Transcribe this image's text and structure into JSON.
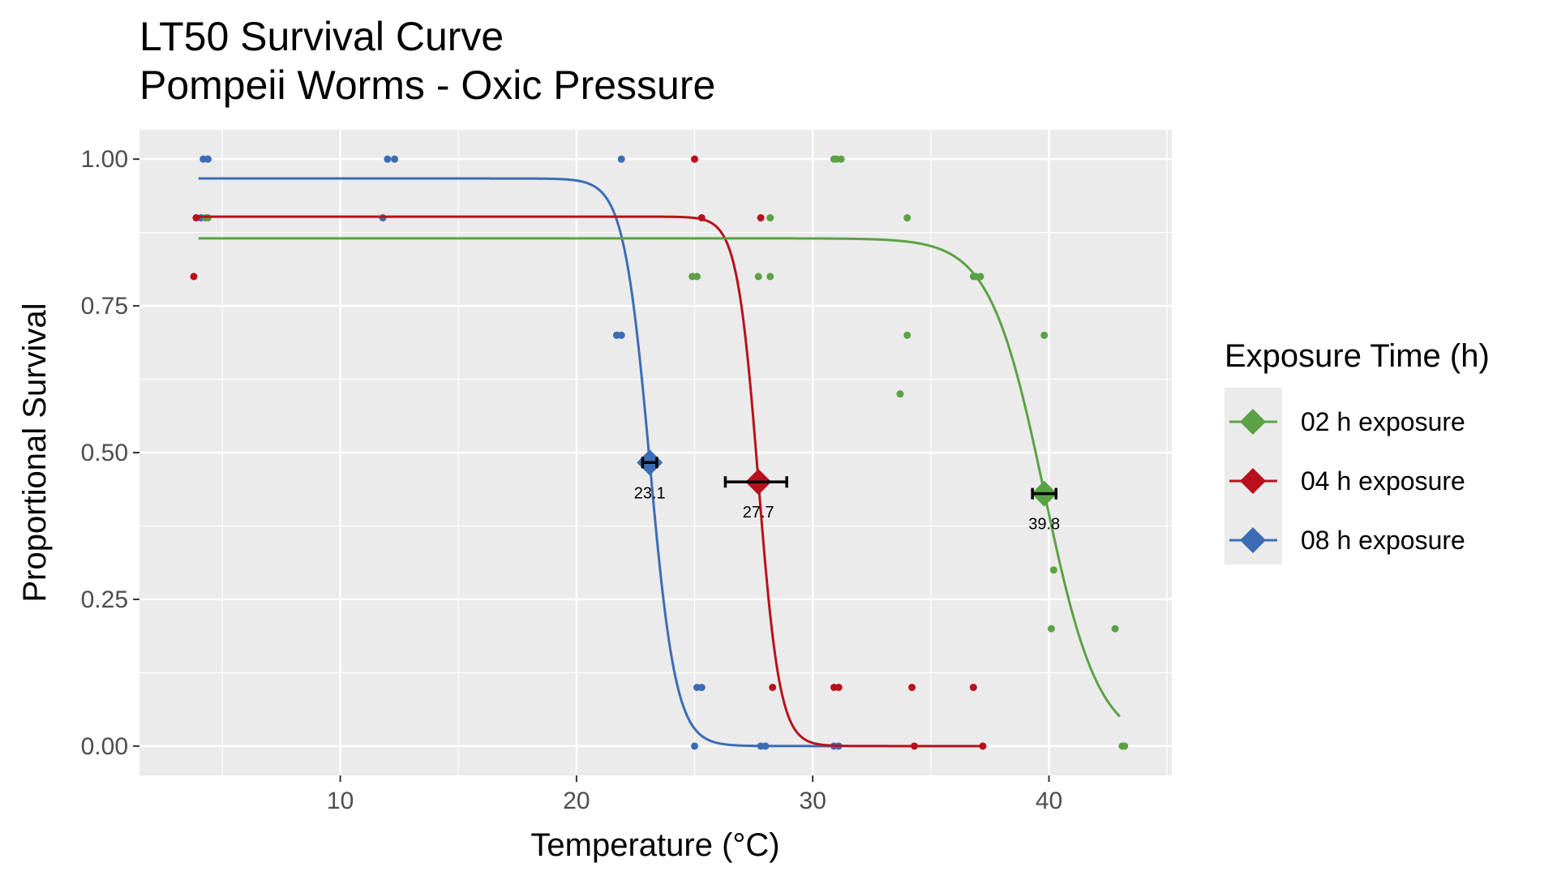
{
  "chart_data": {
    "type": "scatter",
    "title": "LT50 Survival Curve",
    "subtitle": "Pompeii Worms - Oxic Pressure",
    "xlabel": "Temperature (°C)",
    "ylabel": "Proportional Survival",
    "xlim": [
      1.5,
      45.2
    ],
    "ylim": [
      -0.05,
      1.05
    ],
    "x_ticks": [
      10,
      20,
      30,
      40
    ],
    "x_tick_labels": [
      "10",
      "20",
      "30",
      "40"
    ],
    "y_ticks": [
      0,
      0.25,
      0.5,
      0.75,
      1.0
    ],
    "y_tick_labels": [
      "0.00",
      "0.25",
      "0.50",
      "0.75",
      "1.00"
    ],
    "grid": true,
    "legend": {
      "title": "Exposure Time (h)",
      "placement": "right"
    },
    "series": [
      {
        "name": "02 h exposure",
        "color": "#5BA245",
        "points": [
          [
            4.3,
            0.9
          ],
          [
            4.4,
            0.9
          ],
          [
            24.9,
            0.8
          ],
          [
            25.1,
            0.8
          ],
          [
            27.7,
            0.8
          ],
          [
            28.2,
            0.8
          ],
          [
            28.2,
            0.9
          ],
          [
            30.9,
            1.0
          ],
          [
            31.0,
            1.0
          ],
          [
            31.2,
            1.0
          ],
          [
            33.7,
            0.6
          ],
          [
            34.0,
            0.7
          ],
          [
            34.0,
            0.9
          ],
          [
            36.8,
            0.8
          ],
          [
            36.9,
            0.8
          ],
          [
            37.1,
            0.8
          ],
          [
            39.8,
            0.7
          ],
          [
            40.2,
            0.3
          ],
          [
            40.1,
            0.2
          ],
          [
            42.8,
            0.2
          ],
          [
            43.1,
            0.0
          ],
          [
            43.2,
            0.0
          ]
        ],
        "curve": {
          "top": 0.865,
          "x_start": 4.0,
          "x_end": 43.0,
          "midpoint": 39.8,
          "scale": 1.15
        },
        "lt50": {
          "x": 39.8,
          "y": 0.43,
          "ci": [
            39.3,
            40.3
          ],
          "label": "39.8"
        }
      },
      {
        "name": "04 h exposure",
        "color": "#B8111C",
        "points": [
          [
            3.8,
            0.8
          ],
          [
            3.9,
            0.9
          ],
          [
            25.0,
            1.0
          ],
          [
            25.3,
            0.9
          ],
          [
            27.8,
            0.9
          ],
          [
            28.3,
            0.1
          ],
          [
            30.9,
            0.1
          ],
          [
            31.1,
            0.1
          ],
          [
            34.2,
            0.1
          ],
          [
            34.3,
            0.0
          ],
          [
            36.8,
            0.1
          ],
          [
            37.2,
            0.0
          ]
        ],
        "curve": {
          "top": 0.902,
          "x_start": 4.0,
          "x_end": 37.2,
          "midpoint": 27.7,
          "scale": 0.45
        },
        "lt50": {
          "x": 27.7,
          "y": 0.45,
          "ci": [
            26.3,
            28.9
          ],
          "label": "27.7"
        }
      },
      {
        "name": "08 h exposure",
        "color": "#3C6DB4",
        "points": [
          [
            4.1,
            0.9
          ],
          [
            4.2,
            1.0
          ],
          [
            4.4,
            1.0
          ],
          [
            11.8,
            0.9
          ],
          [
            12.0,
            1.0
          ],
          [
            12.3,
            1.0
          ],
          [
            21.7,
            0.7
          ],
          [
            21.9,
            0.7
          ],
          [
            21.9,
            1.0
          ],
          [
            25.0,
            0.0
          ],
          [
            25.1,
            0.1
          ],
          [
            25.3,
            0.1
          ],
          [
            27.8,
            0.0
          ],
          [
            28.0,
            0.0
          ],
          [
            30.9,
            0.0
          ],
          [
            31.1,
            0.0
          ]
        ],
        "curve": {
          "top": 0.967,
          "x_start": 4.0,
          "x_end": 31.0,
          "midpoint": 23.1,
          "scale": 0.55
        },
        "lt50": {
          "x": 23.1,
          "y": 0.483,
          "ci": [
            22.8,
            23.4
          ],
          "label": "23.1"
        }
      }
    ]
  }
}
